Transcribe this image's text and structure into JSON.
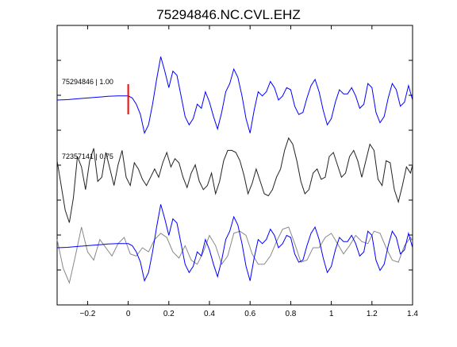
{
  "chart_data": {
    "type": "line",
    "title": "75294846.NC.CVL.EHZ",
    "xlabel": "",
    "ylabel": "",
    "xlim": [
      -0.35,
      1.4
    ],
    "x_ticks": [
      -0.2,
      0,
      0.2,
      0.4,
      0.6,
      0.8,
      1,
      1.2,
      1.4
    ],
    "x_tick_labels": [
      "−0.2",
      "0",
      "0.2",
      "0.4",
      "0.6",
      "0.8",
      "1",
      "1.2",
      "1.4"
    ],
    "y_tick_count": 7,
    "grid": false,
    "legend": "none",
    "pick_marker": {
      "x": 0,
      "color": "#ff0000"
    },
    "colors": {
      "primary": "#0000ff",
      "secondary": "#222222",
      "overlay": "#888888"
    },
    "series": [
      {
        "label": "75294846 | 1.00",
        "color": "#0000ff",
        "x": [
          -0.35,
          -0.3,
          -0.25,
          -0.2,
          -0.15,
          -0.1,
          -0.05,
          0,
          0.02,
          0.04,
          0.06,
          0.08,
          0.1,
          0.12,
          0.14,
          0.16,
          0.18,
          0.2,
          0.22,
          0.24,
          0.26,
          0.28,
          0.3,
          0.32,
          0.34,
          0.36,
          0.38,
          0.4,
          0.42,
          0.44,
          0.46,
          0.48,
          0.5,
          0.52,
          0.54,
          0.56,
          0.58,
          0.6,
          0.62,
          0.64,
          0.66,
          0.68,
          0.7,
          0.72,
          0.74,
          0.76,
          0.78,
          0.8,
          0.82,
          0.84,
          0.86,
          0.88,
          0.9,
          0.92,
          0.94,
          0.96,
          0.98,
          1,
          1.02,
          1.04,
          1.06,
          1.08,
          1.1,
          1.12,
          1.14,
          1.16,
          1.18,
          1.2,
          1.22,
          1.24,
          1.26,
          1.28,
          1.3,
          1.32,
          1.34,
          1.36,
          1.38,
          1.4
        ],
        "y": [
          0,
          0.01,
          0.03,
          0.05,
          0.07,
          0.09,
          0.1,
          0.1,
          0.05,
          -0.1,
          -0.35,
          -0.8,
          -0.6,
          -0.1,
          0.5,
          1.05,
          0.7,
          0.3,
          0.7,
          0.6,
          0.1,
          -0.4,
          -0.6,
          -0.45,
          -0.1,
          -0.2,
          0.2,
          -0.05,
          -0.4,
          -0.7,
          -0.3,
          0.2,
          0.4,
          0.75,
          0.55,
          0.1,
          -0.45,
          -0.8,
          -0.25,
          0.2,
          0.1,
          0.2,
          0.45,
          0.3,
          0.0,
          0.1,
          0.3,
          0.25,
          -0.15,
          -0.35,
          -0.3,
          0.05,
          0.35,
          0.5,
          0.2,
          -0.25,
          -0.6,
          -0.45,
          -0.05,
          0.25,
          0.15,
          0.15,
          0.3,
          0.1,
          -0.2,
          -0.1,
          0.4,
          0.3,
          -0.3,
          -0.55,
          -0.4,
          0.05,
          0.4,
          0.25,
          -0.15,
          -0.05,
          0.35,
          0.0
        ]
      },
      {
        "label": "72357141 | 0.75",
        "color": "#222222",
        "x": [
          -0.35,
          -0.33,
          -0.31,
          -0.29,
          -0.27,
          -0.25,
          -0.23,
          -0.21,
          -0.19,
          -0.17,
          -0.15,
          -0.13,
          -0.11,
          -0.09,
          -0.07,
          -0.05,
          -0.03,
          -0.01,
          0.01,
          0.03,
          0.05,
          0.07,
          0.09,
          0.11,
          0.13,
          0.15,
          0.17,
          0.19,
          0.21,
          0.23,
          0.25,
          0.27,
          0.29,
          0.31,
          0.33,
          0.35,
          0.37,
          0.39,
          0.41,
          0.43,
          0.45,
          0.47,
          0.49,
          0.51,
          0.53,
          0.55,
          0.57,
          0.59,
          0.61,
          0.63,
          0.65,
          0.67,
          0.69,
          0.71,
          0.73,
          0.75,
          0.77,
          0.79,
          0.81,
          0.83,
          0.85,
          0.87,
          0.89,
          0.91,
          0.93,
          0.95,
          0.97,
          0.99,
          1.01,
          1.03,
          1.05,
          1.07,
          1.09,
          1.11,
          1.13,
          1.15,
          1.17,
          1.19,
          1.21,
          1.23,
          1.25,
          1.27,
          1.29,
          1.31,
          1.33,
          1.35,
          1.37,
          1.39,
          1.4
        ],
        "y": [
          0.3,
          -0.3,
          -0.9,
          -1.2,
          -0.6,
          0.4,
          0.15,
          -0.4,
          0.3,
          0.6,
          -0.2,
          -0.1,
          0.5,
          0.1,
          -0.3,
          0.2,
          0.55,
          -0.1,
          -0.3,
          0.25,
          0.1,
          -0.15,
          -0.3,
          -0.1,
          0.1,
          -0.1,
          0.25,
          0.5,
          0.15,
          0.35,
          0.25,
          -0.1,
          -0.35,
          0.0,
          0.2,
          -0.2,
          -0.4,
          -0.3,
          0.0,
          -0.5,
          -0.2,
          0.3,
          0.55,
          0.55,
          0.5,
          0.3,
          -0.05,
          -0.5,
          -0.25,
          0.1,
          -0.2,
          -0.5,
          -0.55,
          -0.4,
          -0.1,
          0.1,
          0.55,
          0.85,
          0.7,
          0.3,
          -0.2,
          -0.5,
          -0.4,
          0.0,
          0.1,
          -0.15,
          -0.1,
          0.4,
          0.5,
          0.2,
          -0.1,
          0.0,
          0.4,
          0.55,
          0.3,
          -0.1,
          0.3,
          0.7,
          0.55,
          -0.15,
          -0.3,
          0.3,
          0.25,
          -0.4,
          -0.7,
          -0.3,
          0.15,
          0.0,
          0.2
        ]
      },
      {
        "label": "",
        "color": "#888888",
        "x": [
          -0.35,
          -0.32,
          -0.29,
          -0.26,
          -0.23,
          -0.2,
          -0.17,
          -0.14,
          -0.11,
          -0.08,
          -0.05,
          -0.02,
          0.01,
          0.04,
          0.07,
          0.1,
          0.13,
          0.16,
          0.19,
          0.22,
          0.25,
          0.28,
          0.31,
          0.34,
          0.37,
          0.4,
          0.43,
          0.46,
          0.49,
          0.52,
          0.55,
          0.58,
          0.61,
          0.64,
          0.67,
          0.7,
          0.73,
          0.76,
          0.79,
          0.82,
          0.85,
          0.88,
          0.91,
          0.94,
          0.97,
          1.0,
          1.03,
          1.06,
          1.09,
          1.12,
          1.15,
          1.18,
          1.21,
          1.24,
          1.27,
          1.3,
          1.33,
          1.36,
          1.39,
          1.4
        ],
        "y": [
          0.2,
          -0.5,
          -0.85,
          -0.2,
          0.5,
          -0.1,
          -0.3,
          0.2,
          0.0,
          -0.2,
          0.1,
          0.25,
          -0.15,
          -0.2,
          0.0,
          -0.1,
          0.2,
          0.35,
          0.25,
          -0.1,
          -0.25,
          0.05,
          -0.3,
          -0.4,
          -0.1,
          0.3,
          0.05,
          -0.4,
          -0.2,
          0.35,
          0.4,
          0.3,
          -0.15,
          -0.4,
          -0.4,
          -0.2,
          0.15,
          0.45,
          0.5,
          0.1,
          -0.35,
          -0.3,
          0.0,
          0.0,
          0.25,
          0.35,
          0.1,
          -0.15,
          0.05,
          0.3,
          0.15,
          0.1,
          0.4,
          0.35,
          0.0,
          -0.3,
          -0.35,
          0.05,
          0.25,
          0.15
        ]
      }
    ]
  }
}
